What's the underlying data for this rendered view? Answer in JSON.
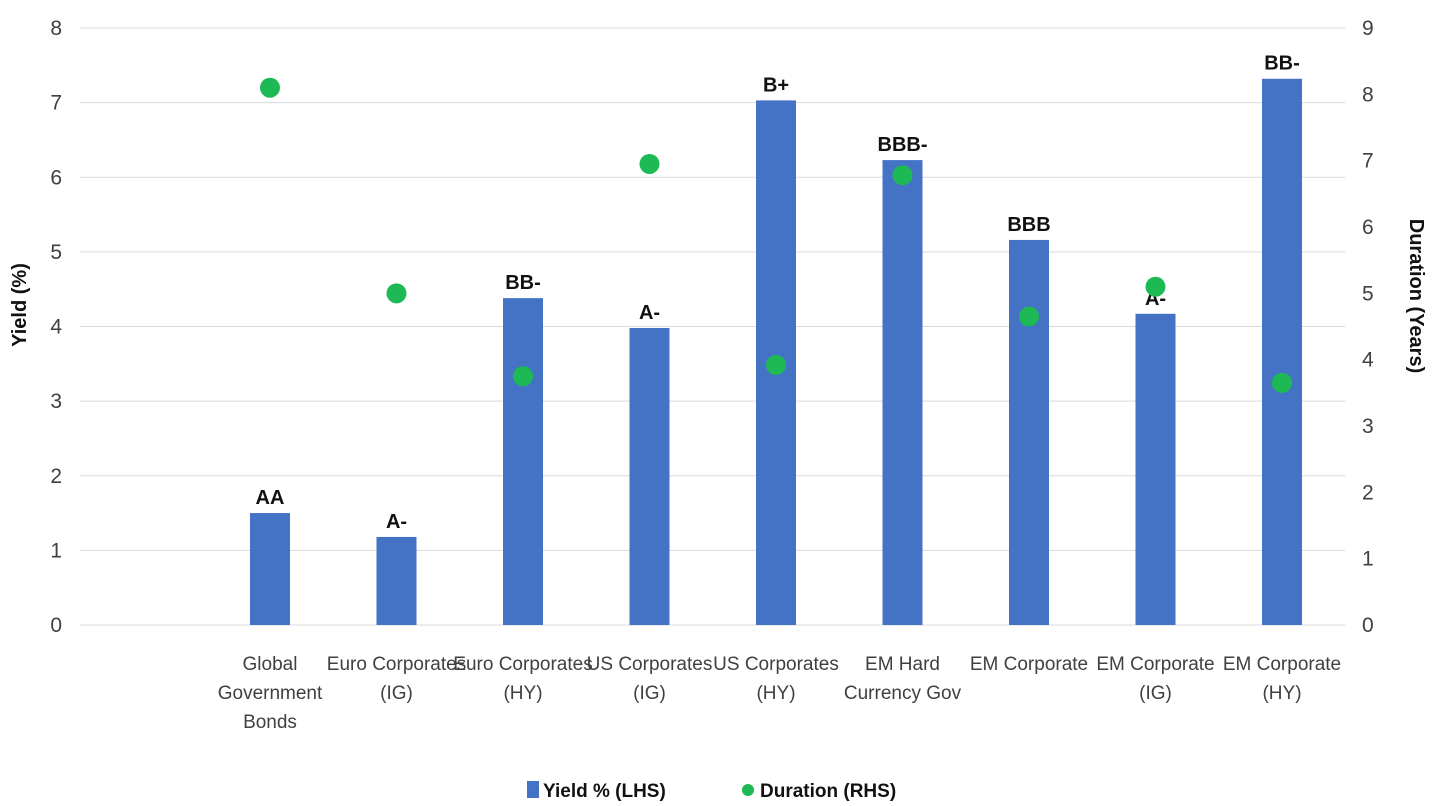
{
  "chart_data": {
    "type": "bar",
    "categories": [
      [
        "Global",
        "Government",
        "Bonds"
      ],
      [
        "Euro Corporates",
        "(IG)"
      ],
      [
        "Euro Corporates",
        "(HY)"
      ],
      [
        "US Corporates",
        "(IG)"
      ],
      [
        "US Corporates",
        "(HY)"
      ],
      [
        "EM Hard",
        "Currency Gov"
      ],
      [
        "EM Corporate"
      ],
      [
        "EM Corporate",
        "(IG)"
      ],
      [
        "EM Corporate",
        "(HY)"
      ]
    ],
    "series": [
      {
        "name": "Yield % (LHS)",
        "type": "bar",
        "axis": "left",
        "color": "#4472c4",
        "values": [
          1.5,
          1.18,
          4.38,
          3.98,
          7.03,
          6.23,
          5.16,
          4.17,
          7.32
        ]
      },
      {
        "name": "Duration (RHS)",
        "type": "scatter",
        "axis": "right",
        "color": "#1db954",
        "values": [
          8.1,
          5.0,
          3.75,
          6.95,
          3.92,
          6.78,
          4.65,
          5.1,
          3.65
        ]
      }
    ],
    "ratings": [
      "AA",
      "A-",
      "BB-",
      "A-",
      "B+",
      "BBB-",
      "BBB",
      "A-",
      "BB-"
    ],
    "ylabel": "Yield (%)",
    "y2label": "Duration (Years)",
    "ylim": [
      0,
      8
    ],
    "y2lim": [
      0,
      9
    ],
    "yticks": [
      0,
      1,
      2,
      3,
      4,
      5,
      6,
      7,
      8
    ],
    "y2ticks": [
      0,
      1,
      2,
      3,
      4,
      5,
      6,
      7,
      8,
      9
    ],
    "grid": true,
    "legend_position": "bottom"
  }
}
